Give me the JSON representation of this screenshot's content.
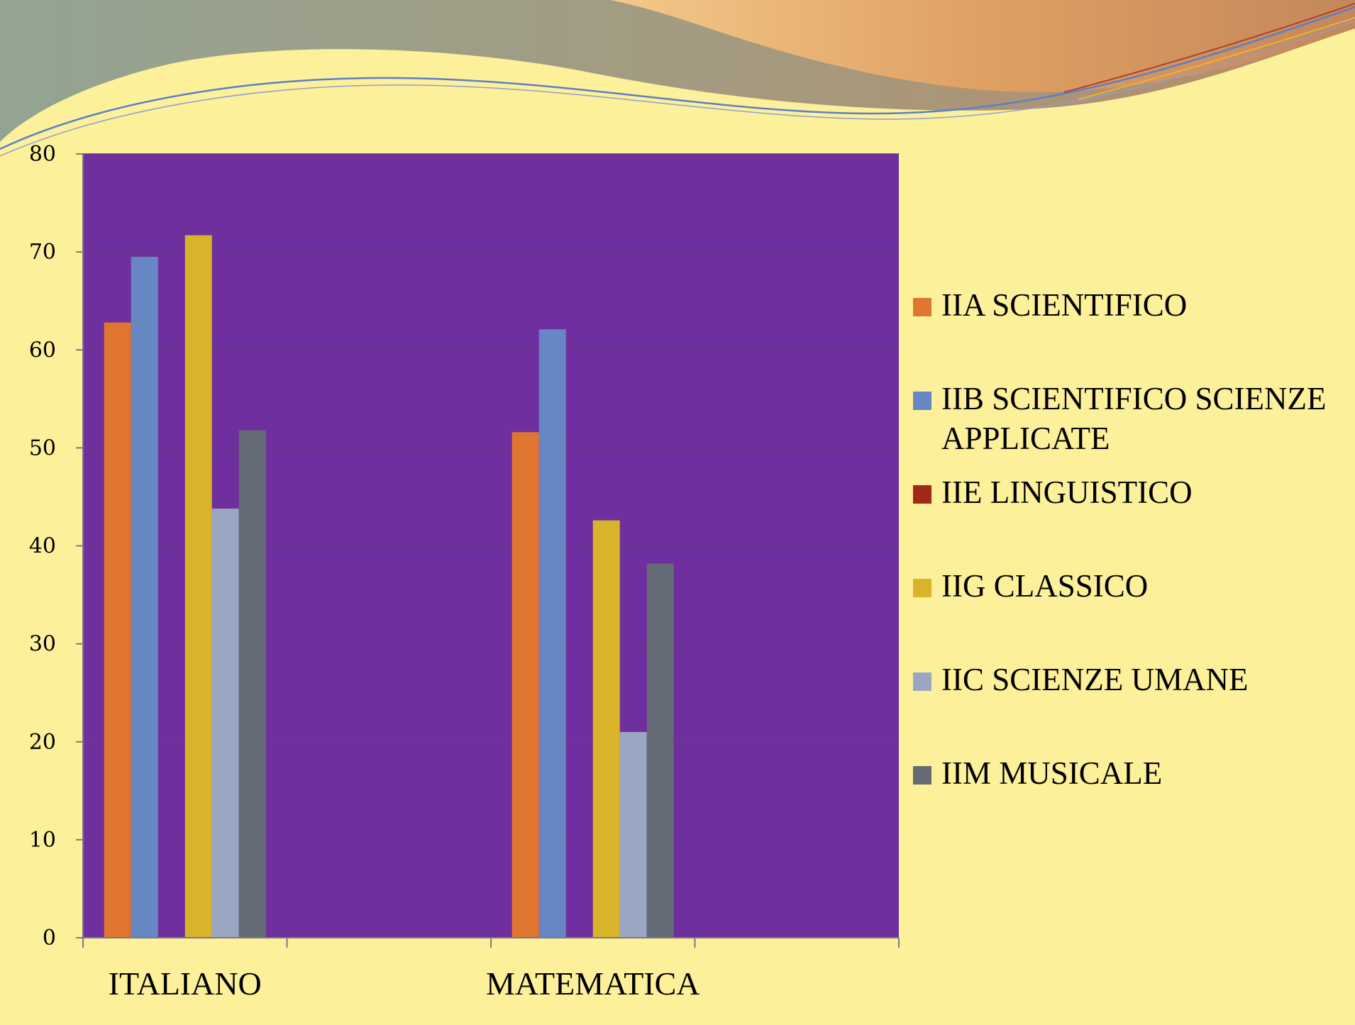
{
  "chart_data": {
    "type": "bar",
    "categories": [
      "ITALIANO",
      "MATEMATICA"
    ],
    "series": [
      {
        "name": "IIA SCIENTIFICO",
        "color": "#e07530",
        "values": [
          62.8,
          51.6
        ]
      },
      {
        "name": "IIB SCIENTIFICO SCIENZE APPLICATE",
        "color": "#6787c4",
        "values": [
          69.5,
          62.1
        ]
      },
      {
        "name": "IIE LINGUISTICO",
        "color": "#a02818",
        "values": [
          0,
          0
        ]
      },
      {
        "name": "IIG CLASSICO",
        "color": "#d9b32a",
        "values": [
          71.7,
          42.6
        ]
      },
      {
        "name": "IIC SCIENZE UMANE",
        "color": "#9ba6c2",
        "values": [
          43.8,
          21.0
        ]
      },
      {
        "name": "IIM MUSICALE",
        "color": "#656a77",
        "values": [
          51.8,
          38.2
        ]
      }
    ],
    "y_ticks": [
      "0",
      "10",
      "20",
      "30",
      "40",
      "50",
      "60",
      "70",
      "80"
    ],
    "ylim": [
      0,
      80
    ],
    "grid": true,
    "legend_position": "right",
    "colors": {
      "plot_background": "#6f2f9f",
      "slide_background": "#fdf09a",
      "gridline": "#5e3f7e"
    }
  }
}
